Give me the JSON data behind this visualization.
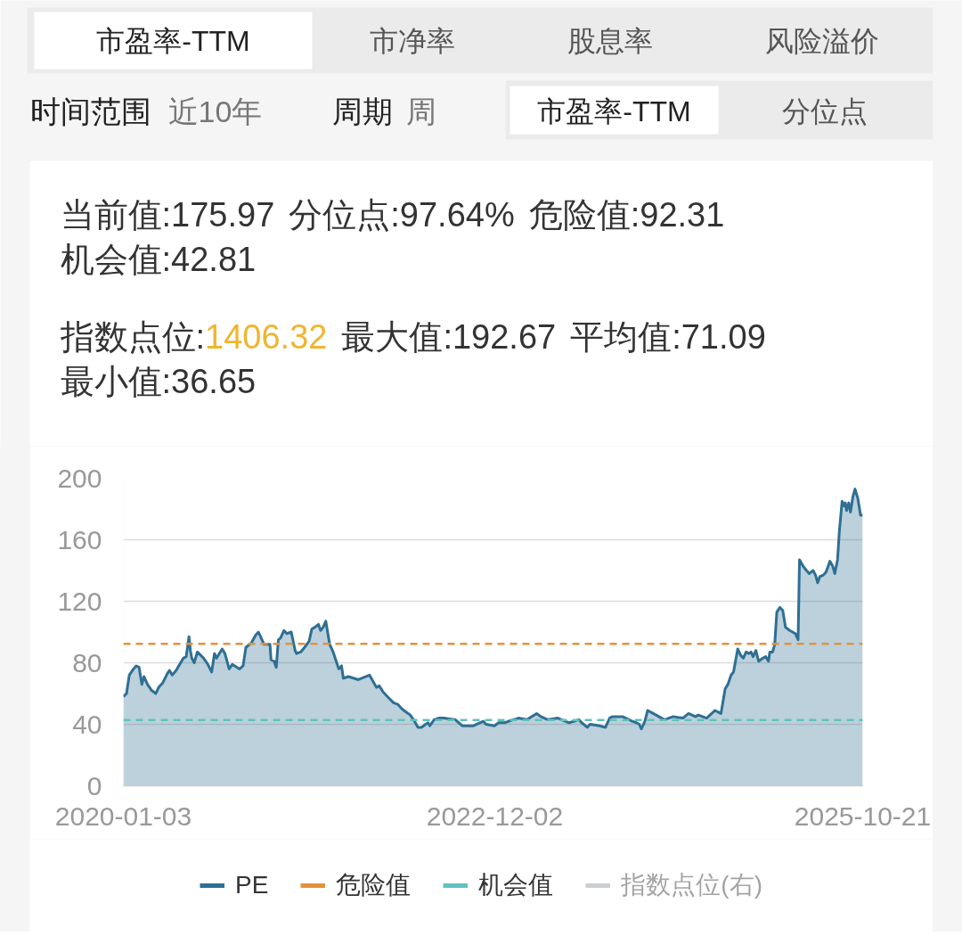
{
  "chart_data": {
    "type": "area",
    "title": "当前值:175.97 分位点:97.64% 危险值:92.31 机会值:42.81",
    "subtitle": "指数点位:1406.32 最大值:192.67 平均值:71.09 最小值:36.65",
    "annotations": [
      "市盈率-TTM",
      "市净率",
      "股息率",
      "风险溢价",
      "时间范围",
      "近10年",
      "周期",
      "周",
      "市盈率-TTM",
      "分位点"
    ],
    "x": [
      "2020-01-03",
      "2020-01-12",
      "2020-01-20",
      "2020-02-01",
      "2020-02-09",
      "2020-02-17",
      "2020-02-25",
      "2020-03-02",
      "2020-03-12",
      "2020-03-24",
      "2020-04-05",
      "2020-04-13",
      "2020-04-25",
      "2020-05-08",
      "2020-05-14",
      "2020-05-22",
      "2020-06-02",
      "2020-06-23",
      "2020-07-01",
      "2020-07-09",
      "2020-07-13",
      "2020-07-17",
      "2020-07-24",
      "2020-08-02",
      "2020-08-20",
      "2020-09-01",
      "2020-09-12",
      "2020-09-20",
      "2020-09-26",
      "2020-10-12",
      "2020-10-20",
      "2020-11-01",
      "2020-11-10",
      "2020-12-01",
      "2020-12-11",
      "2020-12-19",
      "2021-01-04",
      "2021-01-16",
      "2021-01-24",
      "2021-02-01",
      "2021-02-09",
      "2021-02-26",
      "2021-03-01",
      "2021-03-10",
      "2021-03-16",
      "2021-03-22",
      "2021-03-28",
      "2021-04-07",
      "2021-04-15",
      "2021-04-28",
      "2021-05-09",
      "2021-05-13",
      "2021-05-25",
      "2021-06-05",
      "2021-06-18",
      "2021-06-26",
      "2021-07-04",
      "2021-07-15",
      "2021-07-21",
      "2021-07-28",
      "2021-08-05",
      "2021-08-16",
      "2021-08-26",
      "2021-09-11",
      "2021-09-19",
      "2021-09-24",
      "2021-10-09",
      "2021-11-06",
      "2021-12-08",
      "2021-12-28",
      "2022-01-05",
      "2022-01-16",
      "2022-02-02",
      "2022-02-15",
      "2022-02-27",
      "2022-03-11",
      "2022-03-23",
      "2022-04-04",
      "2022-04-16",
      "2022-04-26",
      "2022-05-06",
      "2022-05-18",
      "2022-05-25",
      "2022-05-30",
      "2022-06-11",
      "2022-06-24",
      "2022-07-09",
      "2022-08-11",
      "2022-08-31",
      "2022-10-02",
      "2022-10-30",
      "2022-11-07",
      "2022-12-01",
      "2022-12-13",
      "2022-12-30",
      "2023-01-11",
      "2023-02-08",
      "2023-03-04",
      "2023-04-01",
      "2023-04-13",
      "2023-05-03",
      "2023-06-01",
      "2023-07-03",
      "2023-07-31",
      "2023-08-08",
      "2023-08-24",
      "2023-09-01",
      "2023-09-29",
      "2023-10-15",
      "2023-10-27",
      "2023-11-04",
      "2023-12-03",
      "2023-12-31",
      "2024-01-12",
      "2024-01-20",
      "2024-01-26",
      "2024-02-05",
      "2024-02-13",
      "2024-02-29",
      "2024-04-01",
      "2024-04-26",
      "2024-05-24",
      "2024-06-09",
      "2024-06-29",
      "2024-07-07",
      "2024-07-31",
      "2024-08-24",
      "2024-09-10",
      "2024-09-22",
      "2024-09-30",
      "2024-10-09",
      "2024-10-16",
      "2024-10-28",
      "2024-11-05",
      "2024-11-13",
      "2024-11-21",
      "2024-11-29",
      "2024-12-05",
      "2024-12-11",
      "2024-12-19",
      "2024-12-27",
      "2025-01-08",
      "2025-01-16",
      "2025-01-24",
      "2025-01-28",
      "2025-02-05",
      "2025-02-11",
      "2025-02-17",
      "2025-02-26",
      "2025-03-06",
      "2025-03-14",
      "2025-03-26",
      "2025-04-11",
      "2025-04-19",
      "2025-04-23",
      "2025-05-03",
      "2025-05-13",
      "2025-05-21",
      "2025-06-01",
      "2025-06-08",
      "2025-06-14",
      "2025-06-20",
      "2025-06-30",
      "2025-07-08",
      "2025-07-19",
      "2025-07-27",
      "2025-08-02",
      "2025-08-10",
      "2025-08-15",
      "2025-08-23",
      "2025-08-28",
      "2025-09-01",
      "2025-09-05",
      "2025-09-11",
      "2025-09-16",
      "2025-09-23",
      "2025-09-29",
      "2025-10-07",
      "2025-10-15",
      "2025-10-21"
    ],
    "series": [
      {
        "name": "PE",
        "color": "#2e6f93",
        "values": [
          58,
          60,
          72,
          76,
          78,
          77,
          66,
          71,
          66,
          62,
          60,
          64,
          67,
          73,
          75,
          72,
          75,
          83,
          84,
          97,
          88,
          83,
          80,
          87,
          83,
          79,
          74,
          86,
          83,
          89,
          86,
          76,
          79,
          76,
          78,
          90,
          93,
          98,
          100,
          96,
          92,
          92,
          82,
          81,
          77,
          95,
          96,
          101,
          99,
          100,
          88,
          86,
          87,
          90,
          94,
          102,
          103,
          105,
          101,
          103,
          107,
          92,
          87,
          76,
          78,
          70,
          71,
          69,
          72,
          64,
          65,
          61,
          57,
          54,
          53,
          50,
          48,
          46,
          42,
          38,
          38,
          40,
          41,
          39,
          43,
          44,
          44,
          43,
          39,
          39,
          42,
          40,
          39,
          41,
          41,
          42,
          44,
          43,
          47,
          45,
          43,
          44,
          41,
          43,
          41,
          38,
          40,
          39,
          38,
          44,
          45,
          45,
          42,
          41,
          40,
          37,
          42,
          49,
          47,
          43,
          45,
          44,
          47,
          45,
          46,
          44,
          49,
          47,
          63,
          66,
          72,
          74,
          89,
          85,
          83,
          87,
          86,
          87,
          84,
          88,
          81,
          83,
          84,
          81,
          87,
          87,
          92,
          113,
          116,
          114,
          103,
          101,
          99,
          95,
          147,
          143,
          140,
          138,
          140,
          137,
          132,
          136,
          137,
          139,
          146,
          143,
          138,
          147,
          165,
          185,
          182,
          184,
          179,
          184,
          178,
          188,
          193,
          187,
          176,
          176
        ]
      },
      {
        "name": "指数点位(右)",
        "color": "#8e9297",
        "values": [
          null,
          null,
          null,
          null,
          null,
          null,
          null,
          null,
          null,
          null,
          null,
          null,
          null,
          null,
          null,
          null,
          null,
          null,
          null,
          null,
          null,
          null,
          null,
          null,
          null,
          null,
          null,
          null,
          null,
          null,
          null,
          null,
          null,
          null,
          null,
          null,
          null,
          null,
          null,
          null,
          null,
          null,
          null,
          null,
          null,
          null,
          null,
          null,
          null,
          null,
          null,
          null,
          null,
          null,
          null,
          null,
          null,
          null,
          null,
          null,
          null,
          null,
          null,
          null,
          null,
          null,
          null,
          null,
          null,
          null,
          null,
          null,
          null,
          null,
          null,
          null,
          null,
          null,
          null,
          null,
          null,
          null,
          null,
          null,
          null,
          null,
          null,
          null,
          null,
          null,
          null,
          null,
          null,
          null,
          null,
          null,
          null,
          null,
          null,
          null,
          null,
          null,
          null,
          null,
          null,
          null,
          null,
          null,
          null,
          null,
          null,
          null,
          null,
          null,
          null,
          null,
          null,
          null,
          null,
          null,
          null,
          null,
          null,
          null,
          null,
          null,
          null,
          null,
          null,
          null,
          null,
          null,
          null,
          null,
          null,
          null,
          null,
          null,
          null,
          null,
          null,
          null,
          null,
          null,
          null,
          null,
          null,
          null,
          null,
          null,
          null,
          null,
          null,
          null,
          null,
          null,
          null,
          null,
          null,
          null,
          null,
          null,
          null,
          null,
          null,
          null,
          null,
          null,
          null,
          null,
          null,
          null,
          null,
          null,
          null,
          null,
          null,
          null,
          null,
          null
        ]
      }
    ],
    "ref_lines": [
      {
        "axis": "y",
        "value": 92.31,
        "label": "危险值",
        "color": "#e5913a",
        "line_style": "dashed"
      },
      {
        "axis": "y",
        "value": 42.81,
        "label": "机会值",
        "color": "#5fc3bb",
        "line_style": "dashed"
      }
    ],
    "xlim": [
      "2020-01-03",
      "2025-10-21"
    ],
    "xticks": [
      "2020-01-03",
      "2022-12-02",
      "2025-10-21"
    ],
    "ylim": [
      0,
      200
    ],
    "yticks": [
      0,
      40,
      80,
      120,
      160,
      200
    ],
    "grid": "y",
    "legend": "bottom"
  }
}
